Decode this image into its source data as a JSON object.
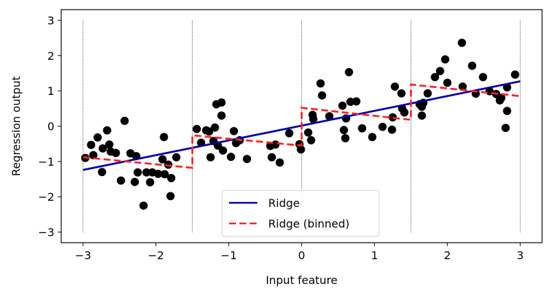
{
  "chart_data": {
    "type": "scatter",
    "xlabel": "Input feature",
    "ylabel": "Regression output",
    "xlim": [
      -3.3,
      3.3
    ],
    "ylim": [
      -3.3,
      3.3
    ],
    "xticks": [
      -3,
      -2,
      -1,
      0,
      1,
      2,
      3
    ],
    "yticks": [
      -3,
      -2,
      -1,
      0,
      1,
      2,
      3
    ],
    "bin_edges": [
      -3,
      -1.5,
      0,
      1.5,
      3
    ],
    "legend_position": "bottom-center",
    "scatter_points": [
      [
        -2.97,
        -0.9
      ],
      [
        -2.89,
        -0.53
      ],
      [
        -2.86,
        -0.82
      ],
      [
        -2.8,
        -0.32
      ],
      [
        -2.74,
        -1.3
      ],
      [
        -2.73,
        -0.63
      ],
      [
        -2.67,
        -0.12
      ],
      [
        -2.64,
        -0.52
      ],
      [
        -2.62,
        -0.72
      ],
      [
        -2.55,
        -0.76
      ],
      [
        -2.48,
        -1.54
      ],
      [
        -2.43,
        0.15
      ],
      [
        -2.35,
        -0.77
      ],
      [
        -2.29,
        -1.58
      ],
      [
        -2.27,
        -0.85
      ],
      [
        -2.25,
        -1.31
      ],
      [
        -2.17,
        -2.25
      ],
      [
        -2.13,
        -1.31
      ],
      [
        -2.08,
        -1.59
      ],
      [
        -2.05,
        -1.31
      ],
      [
        -1.97,
        -1.35
      ],
      [
        -1.91,
        -0.94
      ],
      [
        -1.89,
        -0.31
      ],
      [
        -1.88,
        -1.36
      ],
      [
        -1.83,
        -1.09
      ],
      [
        -1.8,
        -1.98
      ],
      [
        -1.79,
        -1.47
      ],
      [
        -1.72,
        -0.88
      ],
      [
        -1.44,
        -0.08
      ],
      [
        -1.38,
        -0.47
      ],
      [
        -1.31,
        -0.12
      ],
      [
        -1.27,
        -0.15
      ],
      [
        -1.25,
        -0.88
      ],
      [
        -1.21,
        -0.42
      ],
      [
        -1.19,
        -0.04
      ],
      [
        -1.17,
        0.62
      ],
      [
        -1.15,
        -0.55
      ],
      [
        -1.1,
        0.3
      ],
      [
        -1.1,
        0.67
      ],
      [
        -1.08,
        -0.69
      ],
      [
        -0.97,
        -0.87
      ],
      [
        -0.93,
        -0.14
      ],
      [
        -0.9,
        -0.48
      ],
      [
        -0.85,
        -0.4
      ],
      [
        -0.75,
        -0.93
      ],
      [
        -0.43,
        -0.56
      ],
      [
        -0.41,
        -0.88
      ],
      [
        -0.36,
        -0.52
      ],
      [
        -0.3,
        -1.03
      ],
      [
        -0.17,
        -0.2
      ],
      [
        -0.03,
        -0.51
      ],
      [
        -0.01,
        -0.66
      ],
      [
        0.09,
        -0.18
      ],
      [
        0.13,
        -0.4
      ],
      [
        0.15,
        0.32
      ],
      [
        0.16,
        0.2
      ],
      [
        0.26,
        1.21
      ],
      [
        0.28,
        0.87
      ],
      [
        0.38,
        0.28
      ],
      [
        0.56,
        0.58
      ],
      [
        0.58,
        -0.11
      ],
      [
        0.6,
        -0.34
      ],
      [
        0.61,
        0.22
      ],
      [
        0.65,
        1.53
      ],
      [
        0.67,
        0.69
      ],
      [
        0.75,
        0.7
      ],
      [
        0.83,
        -0.06
      ],
      [
        0.97,
        -0.31
      ],
      [
        1.11,
        -0.02
      ],
      [
        1.24,
        -0.1
      ],
      [
        1.25,
        0.25
      ],
      [
        1.28,
        1.12
      ],
      [
        1.37,
        0.93
      ],
      [
        1.38,
        0.5
      ],
      [
        1.41,
        0.39
      ],
      [
        1.62,
        0.62
      ],
      [
        1.65,
        0.55
      ],
      [
        1.65,
        0.3
      ],
      [
        1.67,
        0.66
      ],
      [
        1.73,
        0.93
      ],
      [
        1.83,
        1.39
      ],
      [
        1.9,
        1.56
      ],
      [
        1.97,
        1.89
      ],
      [
        2.0,
        1.23
      ],
      [
        2.2,
        2.36
      ],
      [
        2.21,
        1.12
      ],
      [
        2.34,
        1.71
      ],
      [
        2.39,
        0.92
      ],
      [
        2.49,
        1.39
      ],
      [
        2.58,
        0.99
      ],
      [
        2.67,
        0.91
      ],
      [
        2.72,
        0.73
      ],
      [
        2.74,
        0.8
      ],
      [
        2.8,
        -0.05
      ],
      [
        2.82,
        0.43
      ],
      [
        2.82,
        1.1
      ],
      [
        2.93,
        1.46
      ]
    ],
    "series": [
      {
        "name": "Ridge",
        "color": "#0000aa",
        "x": [
          -3,
          3
        ],
        "y": [
          -1.24,
          1.27
        ]
      },
      {
        "name": "Ridge (binned)",
        "color": "#ff2222",
        "segments": [
          {
            "x": [
              -3,
              -1.5
            ],
            "y": [
              -0.88,
              -1.18
            ]
          },
          {
            "x": [
              -1.5,
              0
            ],
            "y": [
              -0.26,
              -0.55
            ]
          },
          {
            "x": [
              0,
              1.5
            ],
            "y": [
              0.52,
              0.18
            ]
          },
          {
            "x": [
              1.5,
              3
            ],
            "y": [
              1.18,
              0.85
            ]
          }
        ]
      }
    ]
  }
}
